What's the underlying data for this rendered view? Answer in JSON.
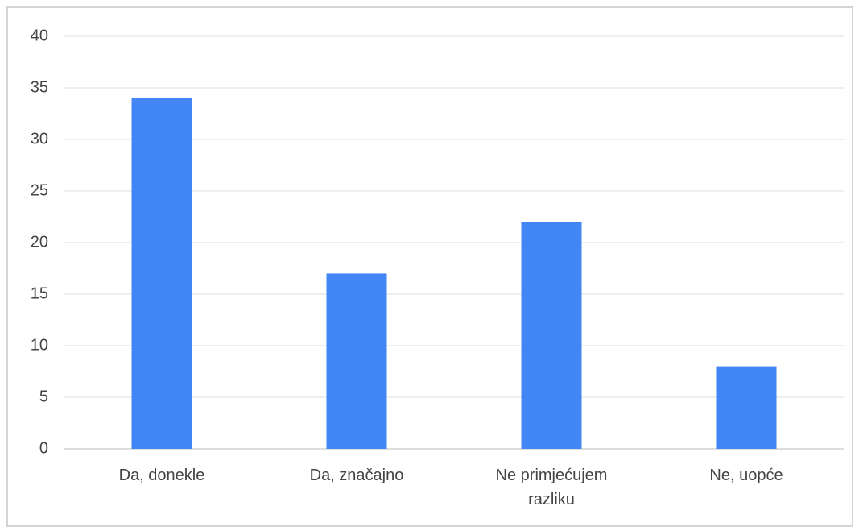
{
  "chart_data": {
    "type": "bar",
    "categories": [
      "Da, donekle",
      "Da, značajno",
      "Ne primjećujem razliku",
      "Ne, uopće"
    ],
    "values": [
      34,
      17,
      22,
      8
    ],
    "color": "#4285f4",
    "ylim": [
      0,
      40
    ],
    "yticks": [
      0,
      5,
      10,
      15,
      20,
      25,
      30,
      35,
      40
    ],
    "grid": true
  }
}
